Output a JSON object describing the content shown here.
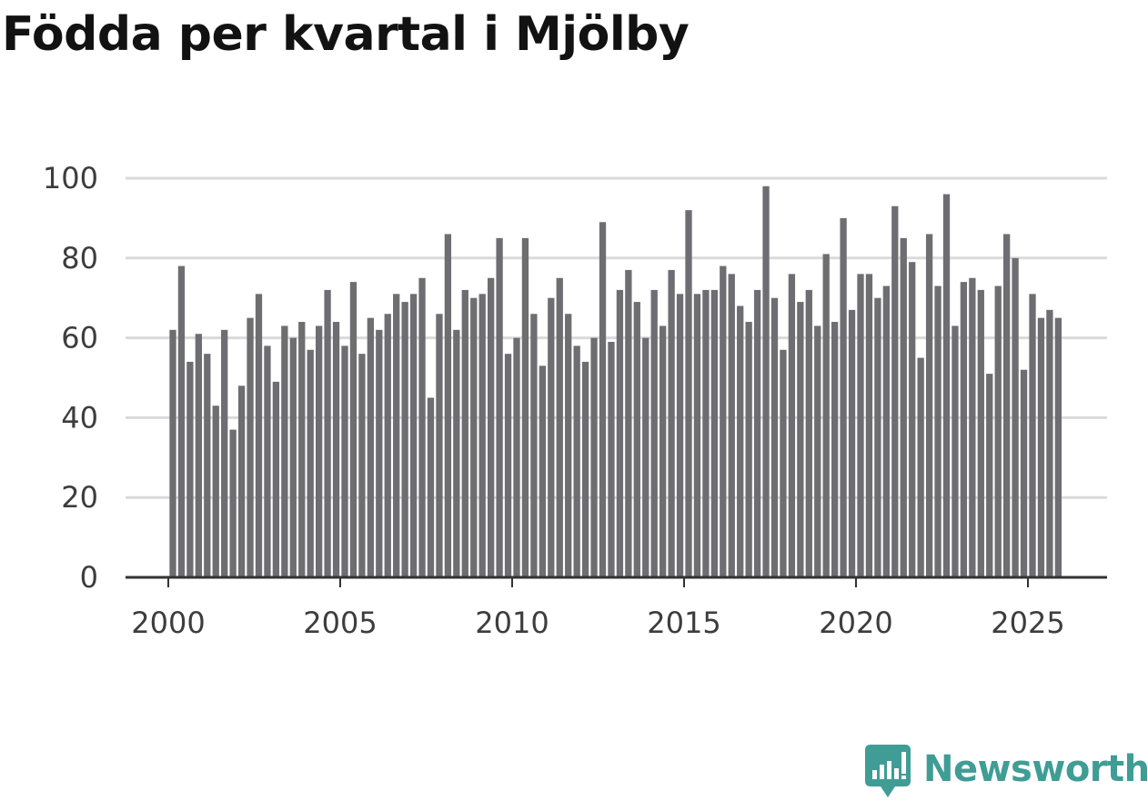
{
  "chart_data": {
    "type": "bar",
    "title": "Födda per kvartal i Mjölby",
    "xlabel": "",
    "ylabel": "",
    "ylim": [
      0,
      100
    ],
    "yticks": [
      0,
      20,
      40,
      60,
      80,
      100
    ],
    "xticks": [
      2000,
      2005,
      2010,
      2015,
      2020,
      2025
    ],
    "x_start": 2000.0,
    "x_step": 0.25,
    "grid": true,
    "colors": {
      "bar": "#6e6d72",
      "highlight": "#12a8a0",
      "grid": "#dadada",
      "axis": "#333333"
    },
    "annotation": {
      "index": 104,
      "text": "65"
    },
    "series": [
      {
        "name": "Födda",
        "values": [
          62,
          78,
          54,
          61,
          56,
          43,
          62,
          37,
          48,
          65,
          71,
          58,
          49,
          63,
          60,
          64,
          57,
          63,
          72,
          64,
          58,
          74,
          56,
          65,
          62,
          66,
          71,
          69,
          71,
          75,
          45,
          66,
          86,
          62,
          72,
          70,
          71,
          75,
          85,
          56,
          60,
          85,
          66,
          53,
          70,
          75,
          66,
          58,
          54,
          60,
          89,
          59,
          72,
          77,
          69,
          60,
          72,
          63,
          77,
          71,
          92,
          71,
          72,
          72,
          78,
          76,
          68,
          64,
          72,
          98,
          70,
          57,
          76,
          69,
          72,
          63,
          81,
          64,
          90,
          67,
          76,
          76,
          70,
          73,
          93,
          85,
          79,
          55,
          86,
          73,
          96,
          63,
          74,
          75,
          72,
          51,
          73,
          86,
          80,
          52,
          71,
          65,
          67,
          65
        ]
      }
    ]
  },
  "brand": {
    "name": "Newsworthy",
    "color": "#3f9d95",
    "icon": "bar-chart-bubble-icon"
  }
}
